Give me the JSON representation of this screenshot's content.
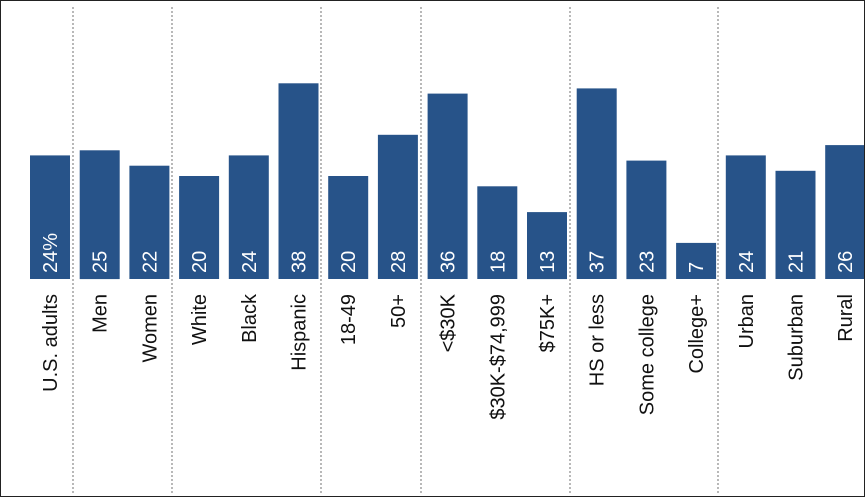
{
  "chart_data": {
    "type": "bar",
    "categories": [
      "U.S. adults",
      "Men",
      "Women",
      "White",
      "Black",
      "Hispanic",
      "18-49",
      "50+",
      "<$30K",
      "$30K-$74,999",
      "$75K+",
      "HS or less",
      "Some college",
      "College+",
      "Urban",
      "Suburban",
      "Rural"
    ],
    "values": [
      24,
      25,
      22,
      20,
      24,
      38,
      20,
      28,
      36,
      18,
      13,
      37,
      23,
      7,
      24,
      21,
      26
    ],
    "data_labels": [
      "24%",
      "25",
      "22",
      "20",
      "24",
      "38",
      "20",
      "28",
      "36",
      "18",
      "13",
      "37",
      "23",
      "7",
      "24",
      "21",
      "26"
    ],
    "groups": [
      [
        0
      ],
      [
        1,
        2
      ],
      [
        3,
        4,
        5
      ],
      [
        6,
        7
      ],
      [
        8,
        9,
        10
      ],
      [
        11,
        12,
        13
      ],
      [
        14,
        15,
        16
      ]
    ],
    "ylim": [
      0,
      42
    ],
    "label_orientation": "vertical",
    "grid": false,
    "legend": "none",
    "colors": {
      "bar": "#275389",
      "bar_text": "#ffffff",
      "axis_text": "#111111",
      "separator": "#8a8a8a"
    }
  }
}
